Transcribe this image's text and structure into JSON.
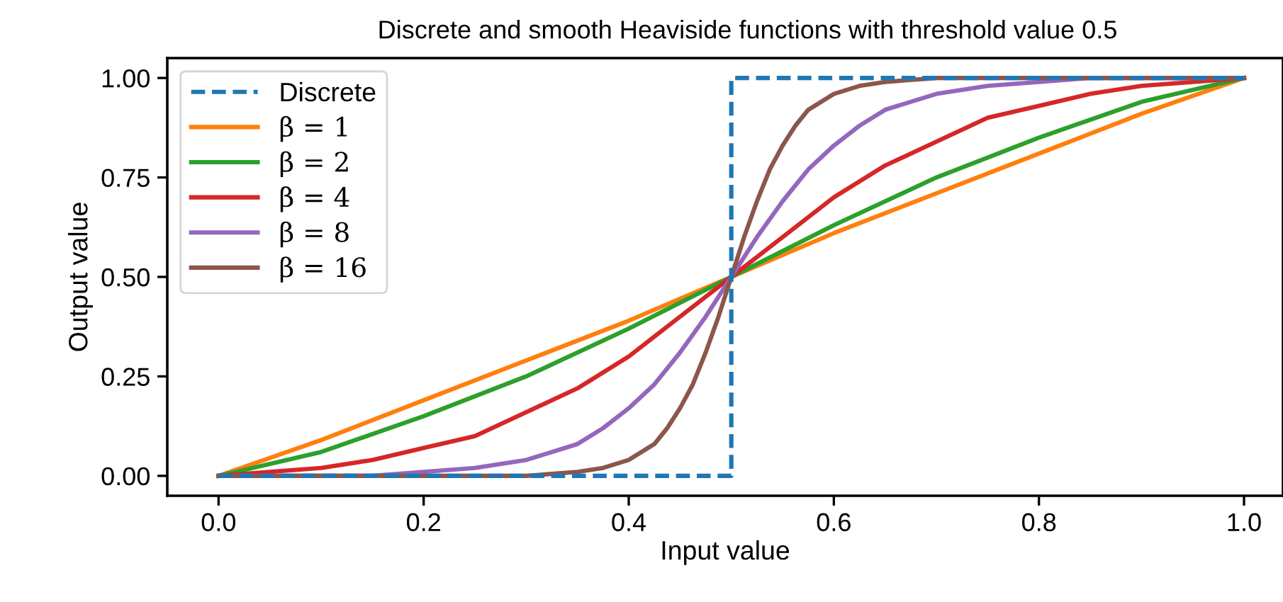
{
  "chart_data": {
    "type": "line",
    "title": "Discrete and smooth Heaviside functions with threshold value 0.5",
    "xlabel": "Input value",
    "ylabel": "Output value",
    "xlim": [
      -0.05,
      1.038
    ],
    "ylim": [
      -0.05,
      1.05
    ],
    "xticks": [
      {
        "value": 0,
        "label": "0.0"
      },
      0.2,
      0.4,
      0.6,
      0.8,
      {
        "value": 1,
        "label": "1.0"
      }
    ],
    "yticks": [
      {
        "value": 0,
        "label": "0.00"
      },
      0.25,
      {
        "value": 0.5,
        "label": "0.50"
      },
      0.75,
      {
        "value": 1,
        "label": "1.00"
      }
    ],
    "grid": false,
    "legend": "top left",
    "series": [
      {
        "name": "Discrete",
        "color": "#1f77b4",
        "line_style": "dashed",
        "x": [
          0,
          0.5,
          0.5,
          1
        ],
        "values": [
          0,
          0,
          1,
          1
        ]
      },
      {
        "name": "β = 1",
        "color": "#ff7f0e",
        "x": [
          0,
          0.1,
          0.2,
          0.3,
          0.4,
          0.5,
          0.6,
          0.7,
          0.8,
          0.9,
          1
        ],
        "values": [
          0,
          0.09,
          0.19,
          0.29,
          0.39,
          0.5,
          0.61,
          0.71,
          0.81,
          0.91,
          1
        ]
      },
      {
        "name": "β = 2",
        "color": "#2ca02c",
        "x": [
          0,
          0.1,
          0.2,
          0.3,
          0.4,
          0.5,
          0.6,
          0.7,
          0.8,
          0.9,
          1
        ],
        "values": [
          0,
          0.06,
          0.15,
          0.25,
          0.37,
          0.5,
          0.63,
          0.75,
          0.85,
          0.94,
          1
        ]
      },
      {
        "name": "β = 4",
        "color": "#d62728",
        "x": [
          0,
          0.05,
          0.1,
          0.15,
          0.2,
          0.25,
          0.3,
          0.35,
          0.4,
          0.45,
          0.5,
          0.55,
          0.6,
          0.65,
          0.7,
          0.75,
          0.8,
          0.85,
          0.9,
          0.95,
          1
        ],
        "values": [
          0,
          0.01,
          0.02,
          0.04,
          0.07,
          0.1,
          0.16,
          0.22,
          0.3,
          0.4,
          0.5,
          0.6,
          0.7,
          0.78,
          0.84,
          0.9,
          0.93,
          0.96,
          0.98,
          0.99,
          1
        ]
      },
      {
        "name": "β = 8",
        "color": "#9467bd",
        "x": [
          0,
          0.1,
          0.15,
          0.2,
          0.25,
          0.3,
          0.35,
          0.375,
          0.4,
          0.425,
          0.45,
          0.475,
          0.5,
          0.525,
          0.55,
          0.575,
          0.6,
          0.625,
          0.65,
          0.7,
          0.75,
          0.8,
          0.85,
          0.9,
          1
        ],
        "values": [
          0,
          0,
          0,
          0.01,
          0.02,
          0.04,
          0.08,
          0.12,
          0.17,
          0.23,
          0.31,
          0.4,
          0.5,
          0.6,
          0.69,
          0.77,
          0.83,
          0.88,
          0.92,
          0.96,
          0.98,
          0.99,
          1,
          1,
          1
        ]
      },
      {
        "name": "β = 16",
        "color": "#8c564b",
        "x": [
          0,
          0.2,
          0.3,
          0.35,
          0.375,
          0.4,
          0.425,
          0.4375,
          0.45,
          0.4625,
          0.475,
          0.4875,
          0.5,
          0.5125,
          0.525,
          0.5375,
          0.55,
          0.5625,
          0.575,
          0.6,
          0.625,
          0.65,
          0.7,
          0.8,
          1
        ],
        "values": [
          0,
          0,
          0,
          0.01,
          0.02,
          0.04,
          0.08,
          0.12,
          0.17,
          0.23,
          0.31,
          0.4,
          0.5,
          0.6,
          0.69,
          0.77,
          0.83,
          0.88,
          0.92,
          0.96,
          0.98,
          0.99,
          1,
          1,
          1
        ]
      }
    ]
  }
}
